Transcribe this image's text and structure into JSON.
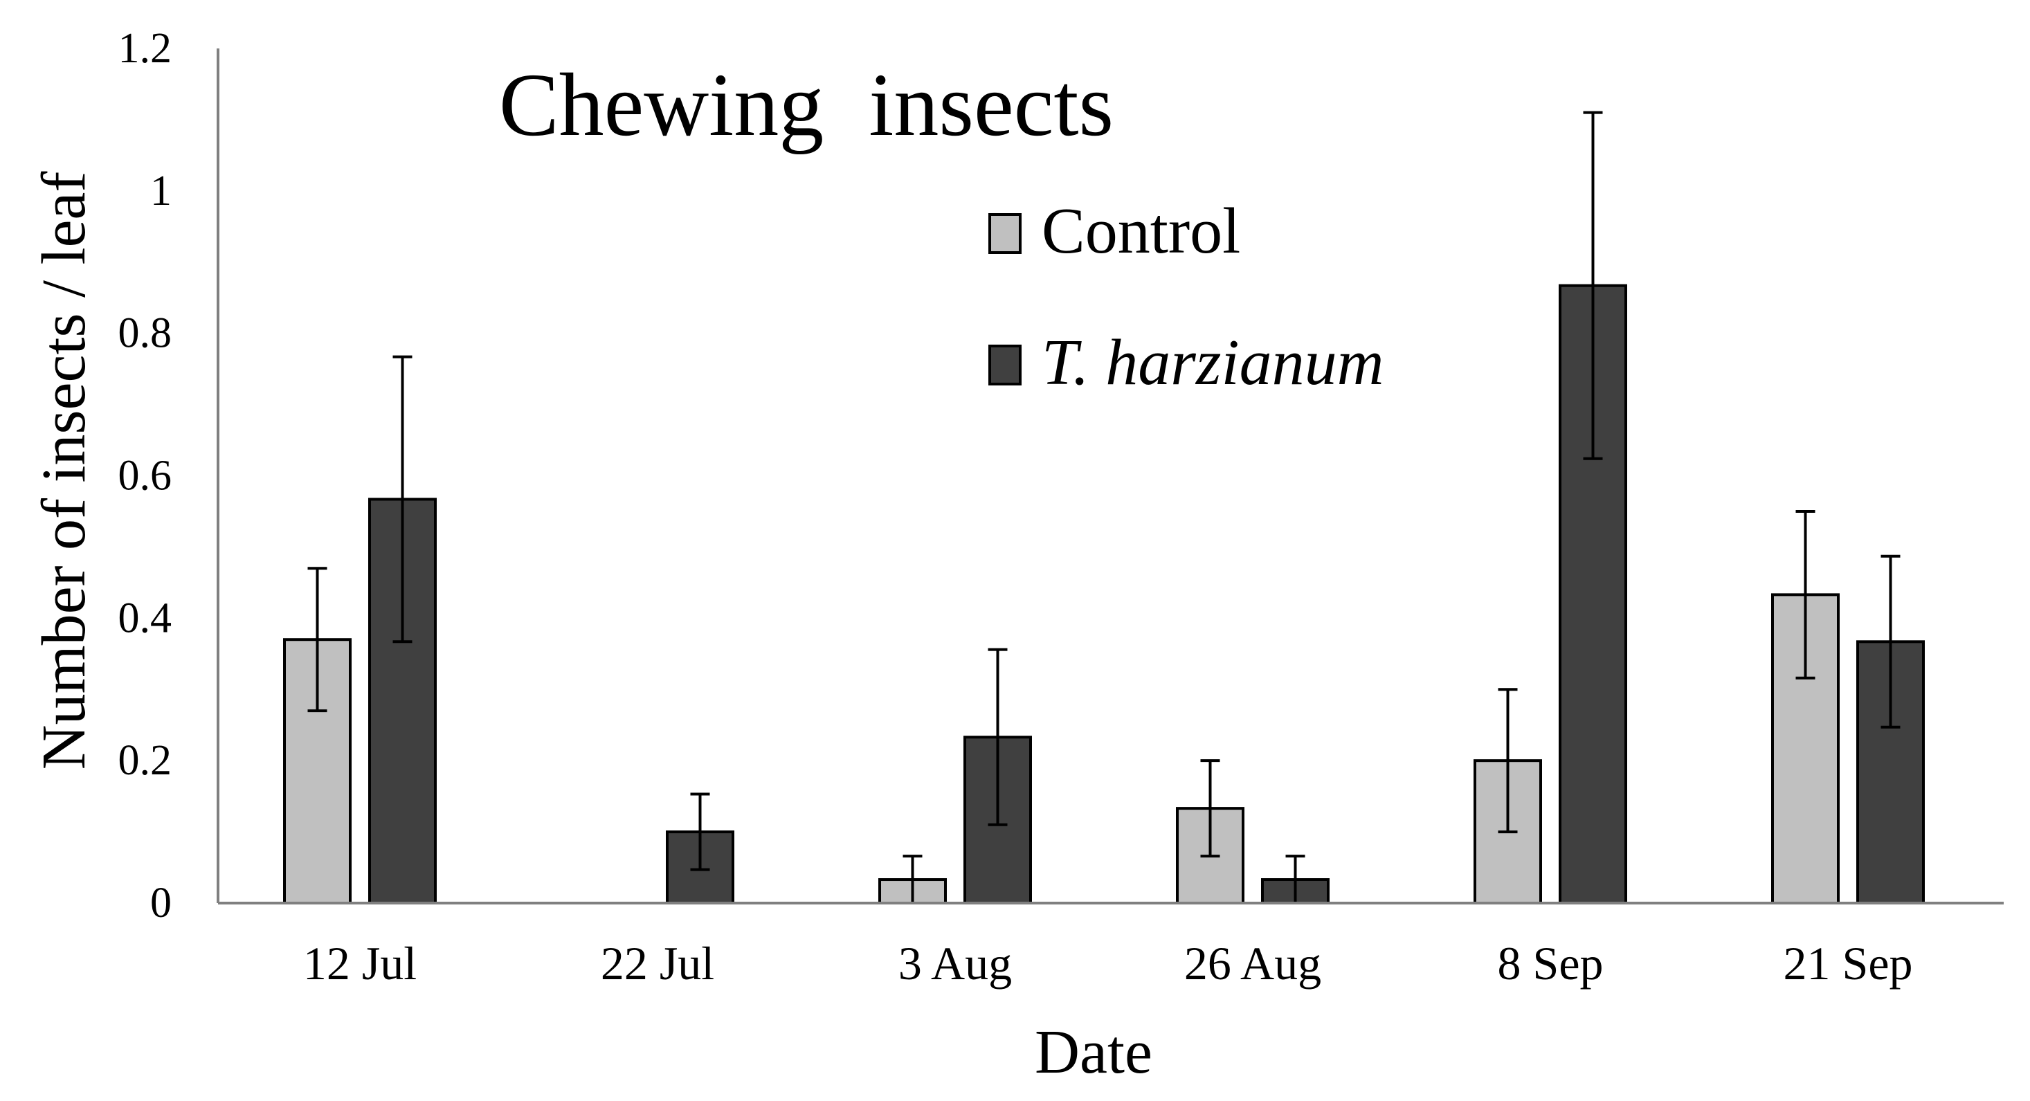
{
  "chart_data": {
    "type": "bar",
    "title": "Chewing  insects",
    "xlabel": "Date",
    "ylabel": "Number of insects / leaf",
    "ylim": [
      0,
      1.2
    ],
    "yticks": [
      "0",
      "0.2",
      "0.4",
      "0.6",
      "0.8",
      "1",
      "1.2"
    ],
    "ytick_values": [
      0,
      0.2,
      0.4,
      0.6,
      0.8,
      1.0,
      1.2
    ],
    "categories": [
      "12 Jul",
      "22 Jul",
      "3 Aug",
      "26 Aug",
      "8 Sep",
      "21 Sep"
    ],
    "series": [
      {
        "name": "Control",
        "color": "#c0c0c0",
        "values": [
          0.37,
          0.0,
          0.033,
          0.133,
          0.2,
          0.433
        ],
        "errors": [
          0.1,
          0.0,
          0.033,
          0.067,
          0.1,
          0.117
        ]
      },
      {
        "name": "T. harzianum",
        "color": "#404040",
        "italic": true,
        "values": [
          0.567,
          0.1,
          0.233,
          0.033,
          0.867,
          0.367
        ],
        "errors": [
          0.2,
          0.053,
          0.123,
          0.033,
          0.243,
          0.12
        ]
      }
    ],
    "legend_position": "top-center",
    "grid": false
  }
}
